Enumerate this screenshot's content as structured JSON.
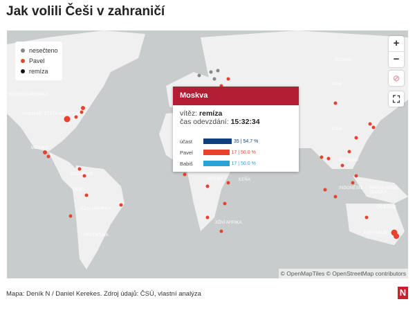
{
  "title": "Jak volili Češi v zahraničí",
  "legend": [
    {
      "label": "nesečteno",
      "color": "#888888"
    },
    {
      "label": "Pavel",
      "color": "#e8412c"
    },
    {
      "label": "remíza",
      "color": "#111111"
    }
  ],
  "map_labels": [
    "Severní Amerika",
    "Spojené státy americké",
    "Mexiko",
    "Kolumbie",
    "Peru",
    "Jižní Amerika",
    "Argentina",
    "Afrika",
    "Keňa",
    "Jižní Afrika",
    "Rusko",
    "Asie",
    "Čína",
    "Vietnam",
    "Indonésie",
    "Papua-Nová Guinea",
    "Oceánie",
    "Austrálie"
  ],
  "controls": {
    "zoom_in": "+",
    "zoom_out": "−",
    "compass_icon": "compass",
    "fullscreen_icon": "fullscreen"
  },
  "popup": {
    "city": "Moskva",
    "winner_label": "vítěz:",
    "winner": "remíza",
    "time_label": "čas odevzdání:",
    "time": "15:32:34",
    "rows": [
      {
        "label": "účast",
        "value": "35 | 54.7 %",
        "pct": 54.7,
        "color": "#0f3f7c"
      },
      {
        "label": "Pavel",
        "value": "17 | 50.0 %",
        "pct": 50.0,
        "color": "#e8412c"
      },
      {
        "label": "Babiš",
        "value": "17 | 50.0 %",
        "pct": 50.0,
        "color": "#29a3d6"
      }
    ]
  },
  "attribution": "© OpenMapTiles © OpenStreetMap contributors",
  "footer": "Mapa: Deník N / Daniel Kerekes. Zdroj údajů: ČSÚ, vlastní analýza",
  "logo": "N"
}
